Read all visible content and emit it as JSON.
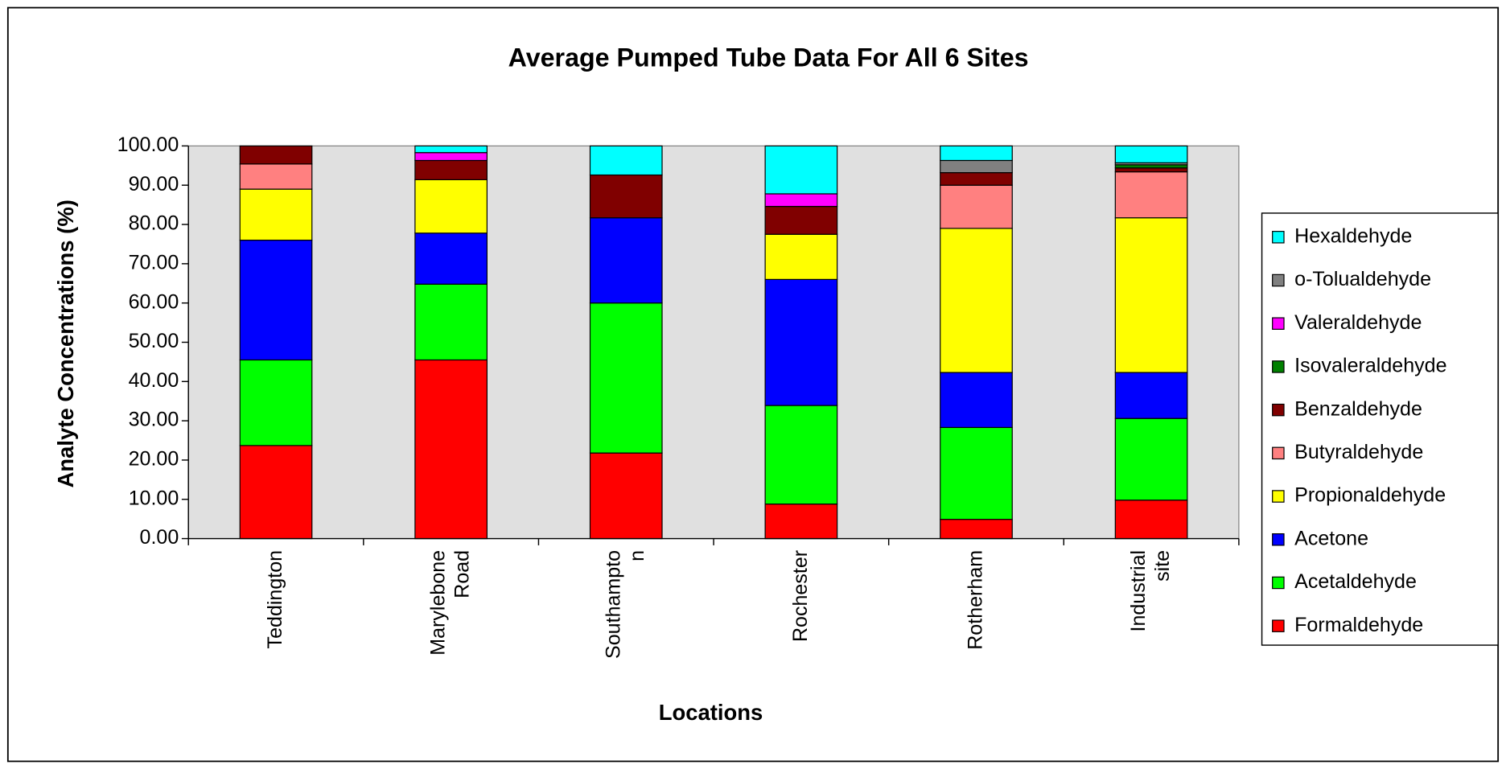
{
  "chart_data": {
    "type": "stacked_bar",
    "title": "Average Pumped Tube Data For All 6 Sites",
    "x_label": "Locations",
    "y_label": "Analyte Concentrations (%)",
    "categories": [
      "Teddington",
      "Marylebone Road",
      "Southampton",
      "Rochester",
      "Rotherham",
      "Industrial site"
    ],
    "series": [
      {
        "name": "Formaldehyde",
        "color": "#ff0000",
        "values": [
          23.7,
          45.5,
          21.8,
          8.8,
          4.9,
          9.8
        ]
      },
      {
        "name": "Acetaldehyde",
        "color": "#00ff00",
        "values": [
          21.8,
          19.3,
          38.2,
          25.1,
          23.4,
          20.8
        ]
      },
      {
        "name": "Acetone",
        "color": "#0000ff",
        "values": [
          30.5,
          13,
          21.7,
          32.1,
          14,
          11.7
        ]
      },
      {
        "name": "Propionaldehyde",
        "color": "#ffff00",
        "values": [
          13,
          13.6,
          0,
          11.5,
          36.7,
          39.4
        ]
      },
      {
        "name": "Butyraldehyde",
        "color": "#ff8080",
        "values": [
          6.4,
          0,
          0,
          0,
          11,
          11.7
        ]
      },
      {
        "name": "Benzaldehyde",
        "color": "#800000",
        "values": [
          4.6,
          4.9,
          10.9,
          7.1,
          3.2,
          1
        ]
      },
      {
        "name": "Isovaleraldehyde",
        "color": "#008000",
        "values": [
          0,
          0,
          0,
          0,
          0,
          0.8
        ]
      },
      {
        "name": "Valeraldehyde",
        "color": "#ff00ff",
        "values": [
          0,
          2,
          0,
          3.2,
          0,
          0
        ]
      },
      {
        "name": "o-Tolualdehyde",
        "color": "#808080",
        "values": [
          0,
          0,
          0,
          0,
          3.1,
          0.5
        ]
      },
      {
        "name": "Hexaldehyde",
        "color": "#00ffff",
        "values": [
          0,
          1.7,
          7.4,
          12.2,
          3.7,
          4.3
        ]
      }
    ],
    "ylim": [
      0,
      100
    ],
    "yticks": [
      {
        "value": 0,
        "label": "0.00"
      },
      {
        "value": 10,
        "label": "10.00"
      },
      {
        "value": 20,
        "label": "20.00"
      },
      {
        "value": 30,
        "label": "30.00"
      },
      {
        "value": 40,
        "label": "40.00"
      },
      {
        "value": 50,
        "label": "50.00"
      },
      {
        "value": 60,
        "label": "60.00"
      },
      {
        "value": 70,
        "label": "70.00"
      },
      {
        "value": 80,
        "label": "80.00"
      },
      {
        "value": 90,
        "label": "90.00"
      },
      {
        "value": 100,
        "label": "100.00"
      }
    ],
    "plot_background": "#e0e0e0",
    "legend": "right"
  }
}
